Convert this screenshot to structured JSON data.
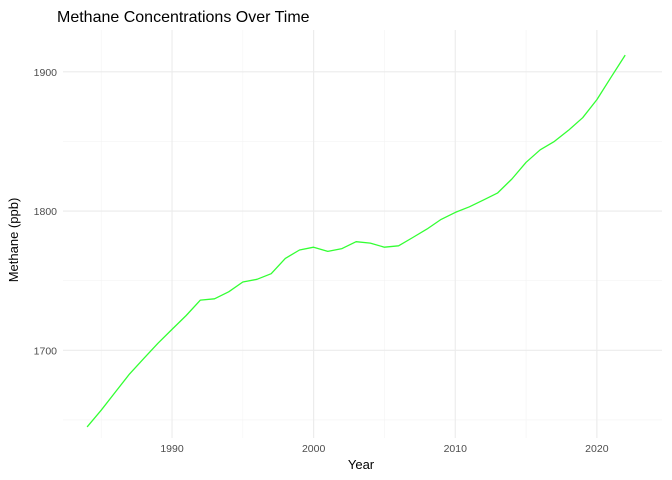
{
  "chart_data": {
    "type": "line",
    "title": "Methane Concentrations Over Time",
    "xlabel": "Year",
    "ylabel": "Methane (ppb)",
    "xlim": [
      1982.3,
      2024.6
    ],
    "ylim": [
      1637,
      1930
    ],
    "x_ticks": [
      1990,
      2000,
      2010,
      2020
    ],
    "y_ticks": [
      1700,
      1800,
      1900
    ],
    "x_minor_ticks": [
      1985,
      1995,
      2005,
      2015
    ],
    "y_minor_ticks": [
      1650,
      1750,
      1850
    ],
    "grid": true,
    "legend": "none",
    "series": [
      {
        "color": "#33ff33",
        "x": [
          1984,
          1985,
          1986,
          1987,
          1988,
          1989,
          1990,
          1991,
          1992,
          1993,
          1994,
          1995,
          1996,
          1997,
          1998,
          1999,
          2000,
          2001,
          2002,
          2003,
          2004,
          2005,
          2006,
          2007,
          2008,
          2009,
          2010,
          2011,
          2012,
          2013,
          2014,
          2015,
          2016,
          2017,
          2018,
          2019,
          2020,
          2021,
          2022
        ],
        "y": [
          1645,
          1657,
          1670,
          1683,
          1694,
          1705,
          1715,
          1725,
          1736,
          1737,
          1742,
          1749,
          1751,
          1755,
          1766,
          1772,
          1774,
          1771,
          1773,
          1778,
          1777,
          1774,
          1775,
          1781,
          1787,
          1794,
          1799,
          1803,
          1808,
          1813,
          1823,
          1835,
          1844,
          1850,
          1858,
          1867,
          1880,
          1896,
          1912
        ]
      }
    ]
  }
}
